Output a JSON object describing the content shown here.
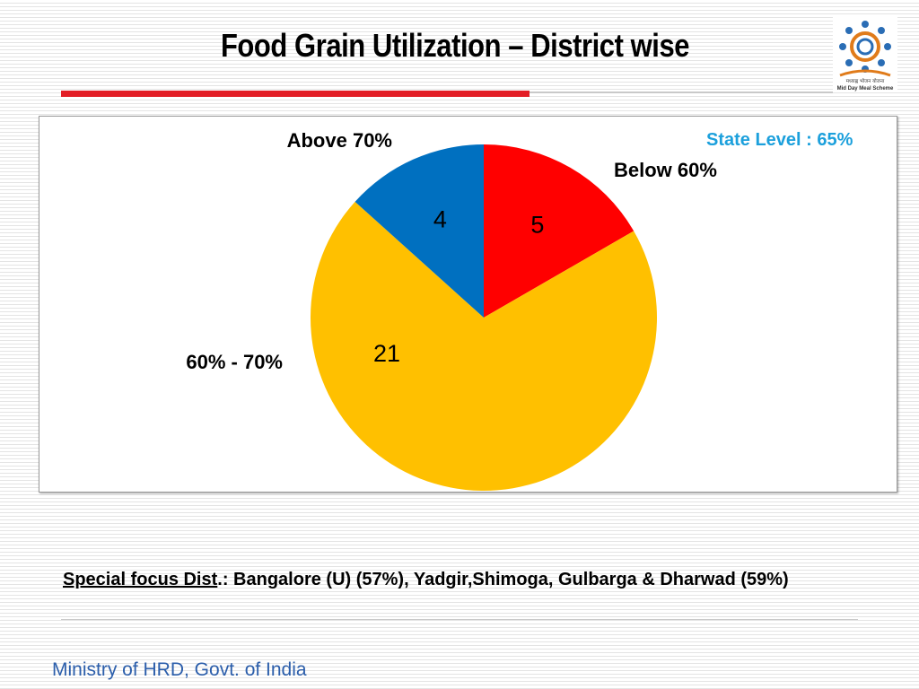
{
  "slide": {
    "title": "Food Grain Utilization – District wise",
    "state_level": "State Level : 65%",
    "focus_prefix": "Special focus Dist",
    "focus_text": ".: Bangalore (U) (57%), Yadgir,Shimoga, Gulbarga & Dharwad  (59%)",
    "footer": "Ministry of HRD, Govt. of India"
  },
  "logo": {
    "icon": "mid-day-meal-logo",
    "text_line1": "मध्याह्न भोजन योजना",
    "text_line2": "Mid Day Meal Scheme"
  },
  "colors": {
    "title_rule": "#e31e26",
    "state_level": "#1ca0dc",
    "footer": "#2b5eab"
  },
  "chart_data": {
    "type": "pie",
    "title": "",
    "categories": [
      "Below 60%",
      "60% - 70%",
      "Above 70%"
    ],
    "values": [
      5,
      21,
      4
    ],
    "colors": [
      "#ff0000",
      "#ffc000",
      "#0070c0"
    ],
    "start_angle": "12 o'clock, clockwise",
    "legend": "none (labels placed beside slices)"
  }
}
